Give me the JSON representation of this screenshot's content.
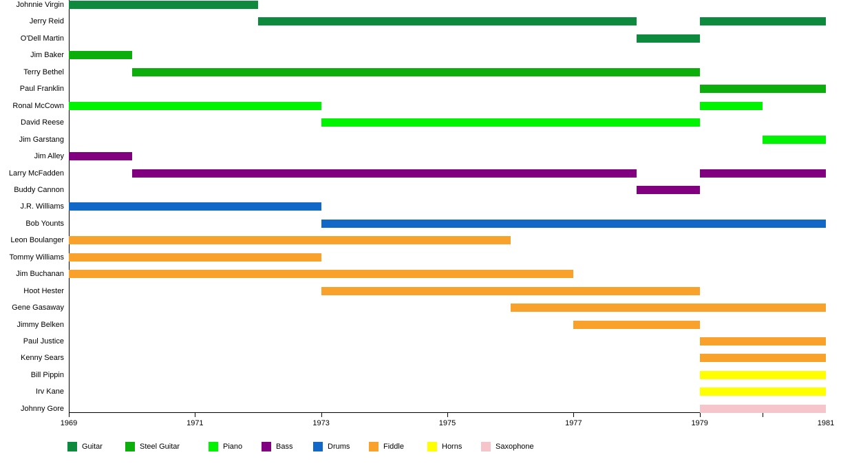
{
  "chart_data": {
    "type": "bar",
    "subtype": "gantt_timeline",
    "title": "",
    "description": "Band member timeline: horizontal bars per member colored by instrument",
    "x_axis": {
      "unit": "year",
      "range": [
        1969,
        1981
      ],
      "labeled_ticks": [
        1969,
        1971,
        1973,
        1975,
        1977,
        1979
      ],
      "unlabeled_ticks": [
        1980
      ],
      "clipped_right_label": "1981",
      "grid": false
    },
    "legend": {
      "position": "bottom",
      "items": [
        {
          "label": "Guitar",
          "color": "#0e8a3f"
        },
        {
          "label": "Steel Guitar",
          "color": "#0bae0b"
        },
        {
          "label": "Piano",
          "color": "#00f300"
        },
        {
          "label": "Bass",
          "color": "#800080"
        },
        {
          "label": "Drums",
          "color": "#1268c6"
        },
        {
          "label": "Fiddle",
          "color": "#f9a22b"
        },
        {
          "label": "Horns",
          "color": "#ffff00"
        },
        {
          "label": "Saxophone",
          "color": "#f6c5cc"
        }
      ]
    },
    "members": [
      {
        "name": "Johnnie Virgin",
        "instrument": "Guitar",
        "periods": [
          [
            1969,
            1972
          ]
        ]
      },
      {
        "name": "Jerry Reid",
        "instrument": "Guitar",
        "periods": [
          [
            1972,
            1978
          ],
          [
            1979,
            1981
          ]
        ]
      },
      {
        "name": "O'Dell Martin",
        "instrument": "Guitar",
        "periods": [
          [
            1978,
            1979
          ]
        ]
      },
      {
        "name": "Jim Baker",
        "instrument": "Steel Guitar",
        "periods": [
          [
            1969,
            1970
          ]
        ]
      },
      {
        "name": "Terry Bethel",
        "instrument": "Steel Guitar",
        "periods": [
          [
            1970,
            1979
          ]
        ]
      },
      {
        "name": "Paul Franklin",
        "instrument": "Steel Guitar",
        "periods": [
          [
            1979,
            1981
          ]
        ]
      },
      {
        "name": "Ronal McCown",
        "instrument": "Piano",
        "periods": [
          [
            1969,
            1973
          ],
          [
            1979,
            1980
          ]
        ]
      },
      {
        "name": "David Reese",
        "instrument": "Piano",
        "periods": [
          [
            1973,
            1979
          ]
        ]
      },
      {
        "name": "Jim Garstang",
        "instrument": "Piano",
        "periods": [
          [
            1980,
            1981
          ]
        ]
      },
      {
        "name": "Jim Alley",
        "instrument": "Bass",
        "periods": [
          [
            1969,
            1970
          ]
        ]
      },
      {
        "name": "Larry McFadden",
        "instrument": "Bass",
        "periods": [
          [
            1970,
            1978
          ],
          [
            1979,
            1981
          ]
        ]
      },
      {
        "name": "Buddy Cannon",
        "instrument": "Bass",
        "periods": [
          [
            1978,
            1979
          ]
        ]
      },
      {
        "name": "J.R. Williams",
        "instrument": "Drums",
        "periods": [
          [
            1969,
            1973
          ]
        ]
      },
      {
        "name": "Bob Younts",
        "instrument": "Drums",
        "periods": [
          [
            1973,
            1981
          ]
        ]
      },
      {
        "name": "Leon Boulanger",
        "instrument": "Fiddle",
        "periods": [
          [
            1969,
            1976
          ]
        ]
      },
      {
        "name": "Tommy Williams",
        "instrument": "Fiddle",
        "periods": [
          [
            1969,
            1973
          ]
        ]
      },
      {
        "name": "Jim Buchanan",
        "instrument": "Fiddle",
        "periods": [
          [
            1969,
            1977
          ]
        ]
      },
      {
        "name": "Hoot Hester",
        "instrument": "Fiddle",
        "periods": [
          [
            1973,
            1979
          ]
        ]
      },
      {
        "name": "Gene Gasaway",
        "instrument": "Fiddle",
        "periods": [
          [
            1976,
            1981
          ]
        ]
      },
      {
        "name": "Jimmy Belken",
        "instrument": "Fiddle",
        "periods": [
          [
            1977,
            1979
          ]
        ]
      },
      {
        "name": "Paul Justice",
        "instrument": "Fiddle",
        "periods": [
          [
            1979,
            1981
          ]
        ]
      },
      {
        "name": "Kenny Sears",
        "instrument": "Fiddle",
        "periods": [
          [
            1979,
            1981
          ]
        ]
      },
      {
        "name": "Bill Pippin",
        "instrument": "Horns",
        "periods": [
          [
            1979,
            1981
          ]
        ]
      },
      {
        "name": "Irv Kane",
        "instrument": "Horns",
        "periods": [
          [
            1979,
            1981
          ]
        ]
      },
      {
        "name": "Johnny Gore",
        "instrument": "Saxophone",
        "periods": [
          [
            1979,
            1981
          ]
        ]
      }
    ]
  }
}
